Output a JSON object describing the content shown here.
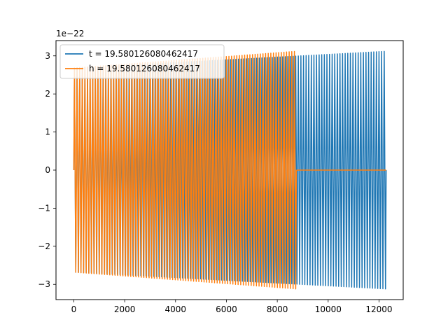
{
  "chart_data": {
    "type": "line",
    "title": "",
    "xlabel": "",
    "ylabel": "",
    "xlim": [
      -700,
      12950
    ],
    "ylim": [
      -3.4,
      3.4
    ],
    "y_offset_label": "1e−22",
    "grid": false,
    "legend_placement": "top-left",
    "x_ticks": [
      {
        "value": 0,
        "label": "0"
      },
      {
        "value": 2000,
        "label": "2000"
      },
      {
        "value": 4000,
        "label": "4000"
      },
      {
        "value": 6000,
        "label": "6000"
      },
      {
        "value": 8000,
        "label": "8000"
      },
      {
        "value": 10000,
        "label": "10000"
      },
      {
        "value": 12000,
        "label": "12000"
      }
    ],
    "y_ticks": [
      {
        "value": -3,
        "label": "−3"
      },
      {
        "value": -2,
        "label": "−2"
      },
      {
        "value": -1,
        "label": "−1"
      },
      {
        "value": 0,
        "label": "0"
      },
      {
        "value": 1,
        "label": "1"
      },
      {
        "value": 2,
        "label": "2"
      },
      {
        "value": 3,
        "label": "3"
      }
    ],
    "series": [
      {
        "name": "t = 19.580126080462417",
        "color": "#1f77b4",
        "x_range": [
          0,
          12280
        ],
        "cycles": 120,
        "amp_start": 2.68,
        "amp_end": 3.12,
        "envelope_points": [
          {
            "x": 0,
            "y": 2.68
          },
          {
            "x": 4000,
            "y": 2.8
          },
          {
            "x": 8000,
            "y": 2.93
          },
          {
            "x": 12280,
            "y": 3.12
          }
        ]
      },
      {
        "name": "h = 19.580126080462417",
        "color": "#ff7f0e",
        "x_range": [
          0,
          8750
        ],
        "cycles": 85,
        "amp_start": 2.68,
        "amp_end": 3.12,
        "flat_after": 8750,
        "flat_until": 12280,
        "flat_value": 0,
        "envelope_points": [
          {
            "x": 0,
            "y": 2.68
          },
          {
            "x": 4000,
            "y": 2.85
          },
          {
            "x": 8750,
            "y": 3.12
          }
        ]
      }
    ]
  }
}
